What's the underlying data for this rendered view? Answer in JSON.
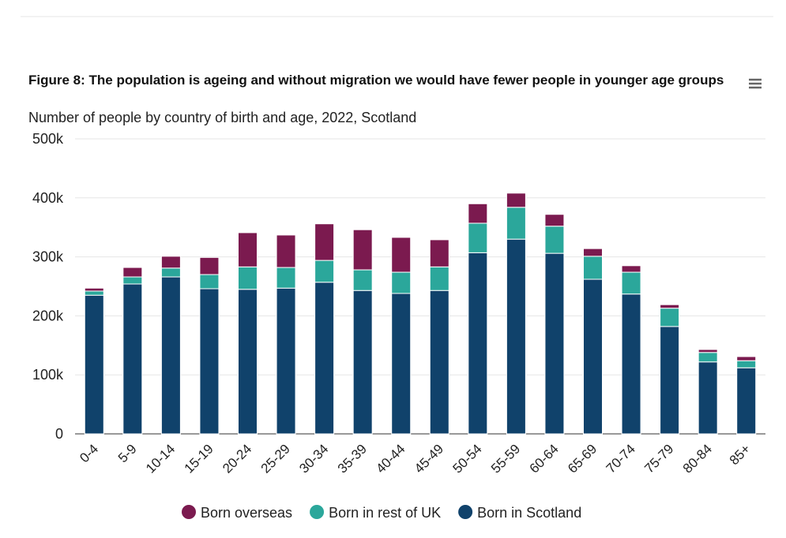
{
  "chart_data": {
    "type": "stacked_bar",
    "title": "Figure 8: The population is ageing and without migration we would have fewer people in younger age groups",
    "subtitle": "Number of people by country of birth and age, 2022, Scotland",
    "categories": [
      "0-4",
      "5-9",
      "10-14",
      "15-19",
      "20-24",
      "25-29",
      "30-34",
      "35-39",
      "40-44",
      "45-49",
      "50-54",
      "55-59",
      "60-64",
      "65-69",
      "70-74",
      "75-79",
      "80-84",
      "85+"
    ],
    "series": [
      {
        "name": "Born overseas",
        "color": "#7b1a4f",
        "values": [
          5000,
          16000,
          20000,
          29000,
          58000,
          55000,
          62000,
          68000,
          59000,
          46000,
          33000,
          24000,
          20000,
          13000,
          11000,
          6000,
          5000,
          7000
        ]
      },
      {
        "name": "Born in rest of UK",
        "color": "#2ba79b",
        "values": [
          7000,
          12000,
          15000,
          24000,
          38000,
          35000,
          37000,
          35000,
          36000,
          40000,
          50000,
          54000,
          46000,
          39000,
          37000,
          31000,
          16000,
          12000
        ]
      },
      {
        "name": "Born in Scotland",
        "color": "#10426b",
        "values": [
          235000,
          254000,
          266000,
          246000,
          245000,
          247000,
          257000,
          243000,
          238000,
          243000,
          307000,
          330000,
          306000,
          262000,
          237000,
          182000,
          122000,
          112000
        ]
      }
    ],
    "ylim": [
      0,
      500000
    ],
    "yticks": [
      0,
      {
        "value": 100000,
        "label": "100k"
      },
      {
        "value": 200000,
        "label": "200k"
      },
      {
        "value": 300000,
        "label": "300k"
      },
      {
        "value": 400000,
        "label": "400k"
      },
      {
        "value": 500000,
        "label": "500k"
      }
    ],
    "grid": true
  }
}
